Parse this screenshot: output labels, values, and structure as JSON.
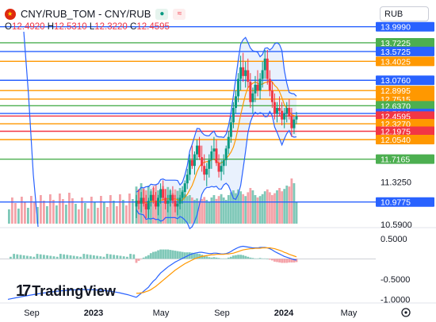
{
  "header": {
    "title": "CNY/RUB_TOM - CNY/RUB",
    "badge_a": "●",
    "badge_b": "≈",
    "o_label": "O",
    "o_value": "12.4920",
    "h_label": "H",
    "h_value": "12.5310",
    "l_label": "L",
    "l_value": "12.3220",
    "c_label": "C",
    "c_value": "12.4595"
  },
  "currency_select": "RUB",
  "brand": "TradingView",
  "colors": {
    "up": "#089981",
    "down": "#f23645",
    "bollinger": "#2962ff",
    "ma": "#ff9800",
    "volume_up": "#7fc8b8",
    "volume_down": "#f4a3a9",
    "bb_fill": "#e7effd",
    "macd": "#2962ff",
    "signal": "#ff9800"
  },
  "chart_data": {
    "type": "candlestick",
    "xticks": [
      "Sep",
      "2023",
      "May",
      "Sep",
      "2024",
      "May"
    ],
    "yticks_main": [
      "11.3250",
      "10.5900"
    ],
    "yticks_macd": [
      "0.5000",
      "-0.5000",
      "-1.0000"
    ],
    "ylim_main": [
      10.55,
      14.05
    ],
    "ylim_macd": [
      -1.05,
      0.75
    ],
    "price_lines": [
      {
        "value": 13.999,
        "label": "13.9990",
        "color": "#2962ff"
      },
      {
        "value": 13.7225,
        "label": "13.7225",
        "color": "#4caf50"
      },
      {
        "value": 13.5725,
        "label": "13.5725",
        "color": "#2962ff"
      },
      {
        "value": 13.4025,
        "label": "13.4025",
        "color": "#ff9800"
      },
      {
        "value": 13.076,
        "label": "13.0760",
        "color": "#2962ff"
      },
      {
        "value": 12.8995,
        "label": "12.8995",
        "color": "#ff9800"
      },
      {
        "value": 12.7515,
        "label": "12.7515",
        "color": "#ff9800"
      },
      {
        "value": 12.637,
        "label": "12.6370",
        "color": "#4caf50"
      },
      {
        "value": 12.504,
        "label": "12.5040",
        "color": "#2962ff"
      },
      {
        "value": 12.4595,
        "label": "12.4595",
        "color": "#f23645"
      },
      {
        "value": 12.327,
        "label": "12.3270",
        "color": "#ff9800"
      },
      {
        "value": 12.1975,
        "label": "12.1975",
        "color": "#f23645"
      },
      {
        "value": 12.054,
        "label": "12.0540",
        "color": "#ff9800"
      },
      {
        "value": 11.7165,
        "label": "11.7165",
        "color": "#4caf50"
      },
      {
        "value": 10.9775,
        "label": "10.9775",
        "color": "#2962ff"
      }
    ],
    "candles": [
      [
        10.9,
        11.1,
        10.7,
        11.0
      ],
      [
        11.0,
        11.2,
        10.85,
        10.95
      ],
      [
        10.95,
        11.15,
        10.8,
        11.05
      ],
      [
        11.05,
        11.2,
        10.9,
        10.95
      ],
      [
        10.95,
        11.1,
        10.7,
        10.85
      ],
      [
        10.85,
        11.05,
        10.7,
        11.0
      ],
      [
        11.0,
        11.2,
        10.9,
        11.1
      ],
      [
        11.1,
        11.25,
        10.95,
        11.0
      ],
      [
        11.0,
        11.15,
        10.85,
        10.9
      ],
      [
        10.9,
        11.1,
        10.75,
        11.05
      ],
      [
        11.05,
        11.3,
        10.95,
        11.2
      ],
      [
        11.2,
        11.35,
        11.0,
        11.05
      ],
      [
        11.05,
        11.2,
        10.85,
        10.95
      ],
      [
        10.95,
        11.1,
        10.8,
        11.0
      ],
      [
        11.0,
        11.2,
        10.9,
        11.1
      ],
      [
        11.1,
        11.25,
        10.95,
        11.0
      ],
      [
        11.0,
        11.1,
        10.8,
        10.9
      ],
      [
        10.9,
        11.05,
        10.75,
        10.95
      ],
      [
        10.95,
        11.1,
        10.85,
        11.05
      ],
      [
        11.05,
        11.25,
        10.95,
        11.15
      ],
      [
        11.15,
        11.35,
        11.05,
        11.3
      ],
      [
        11.3,
        11.55,
        11.2,
        11.45
      ],
      [
        11.45,
        11.8,
        11.35,
        11.7
      ],
      [
        11.7,
        11.95,
        11.55,
        11.6
      ],
      [
        11.6,
        11.85,
        11.45,
        11.8
      ],
      [
        11.8,
        12.05,
        11.7,
        11.95
      ],
      [
        11.95,
        12.1,
        11.7,
        11.75
      ],
      [
        11.75,
        11.95,
        11.5,
        11.6
      ],
      [
        11.6,
        11.8,
        11.35,
        11.45
      ],
      [
        11.45,
        11.65,
        11.25,
        11.55
      ],
      [
        11.55,
        11.8,
        11.4,
        11.7
      ],
      [
        11.7,
        11.95,
        11.55,
        11.85
      ],
      [
        11.85,
        12.1,
        11.7,
        11.9
      ],
      [
        11.9,
        12.05,
        11.6,
        11.65
      ],
      [
        11.65,
        11.8,
        11.4,
        11.5
      ],
      [
        11.5,
        11.7,
        11.35,
        11.6
      ],
      [
        11.6,
        11.8,
        11.45,
        11.7
      ],
      [
        11.7,
        11.95,
        11.6,
        11.9
      ],
      [
        11.9,
        12.2,
        11.8,
        12.1
      ],
      [
        12.1,
        12.45,
        12.0,
        12.35
      ],
      [
        12.35,
        12.7,
        12.25,
        12.6
      ],
      [
        12.6,
        12.9,
        12.5,
        12.8
      ],
      [
        12.8,
        13.2,
        12.7,
        13.1
      ],
      [
        13.1,
        13.5,
        12.9,
        13.3
      ],
      [
        13.3,
        13.55,
        13.05,
        13.15
      ],
      [
        13.15,
        13.4,
        12.95,
        13.25
      ],
      [
        13.25,
        13.45,
        12.95,
        13.05
      ],
      [
        13.05,
        13.2,
        12.6,
        12.7
      ],
      [
        12.7,
        12.95,
        12.5,
        12.85
      ],
      [
        12.85,
        13.15,
        12.7,
        13.0
      ],
      [
        13.0,
        13.25,
        12.8,
        12.9
      ],
      [
        12.9,
        13.2,
        12.75,
        13.1
      ],
      [
        13.1,
        13.4,
        12.95,
        13.25
      ],
      [
        13.25,
        13.6,
        13.1,
        13.45
      ],
      [
        13.45,
        13.6,
        13.0,
        13.1
      ],
      [
        13.1,
        13.25,
        12.8,
        12.9
      ],
      [
        12.9,
        13.05,
        12.6,
        12.7
      ],
      [
        12.7,
        12.85,
        12.4,
        12.5
      ],
      [
        12.5,
        12.7,
        12.35,
        12.6
      ],
      [
        12.6,
        12.8,
        12.45,
        12.55
      ],
      [
        12.55,
        12.7,
        12.3,
        12.4
      ],
      [
        12.4,
        12.6,
        12.25,
        12.5
      ],
      [
        12.5,
        12.7,
        12.35,
        12.6
      ],
      [
        12.6,
        12.75,
        12.4,
        12.45
      ],
      [
        12.45,
        12.6,
        12.1,
        12.25
      ],
      [
        12.25,
        12.45,
        12.15,
        12.4
      ],
      [
        12.4,
        12.53,
        12.32,
        12.46
      ]
    ],
    "volume_relative": [
      0.78,
      0.72,
      0.85,
      0.74,
      0.7,
      0.8,
      0.68,
      0.75,
      0.82,
      0.7,
      0.66,
      0.79,
      0.73,
      0.77,
      0.7,
      0.64,
      0.72,
      0.69,
      0.75,
      0.7,
      0.62,
      0.58,
      0.6,
      0.55,
      0.5,
      0.53,
      0.48,
      0.52,
      0.56,
      0.5,
      0.45,
      0.55,
      0.6,
      0.52,
      0.58,
      0.62,
      0.55,
      0.5,
      0.6,
      0.66,
      0.7,
      0.64,
      0.72,
      0.68,
      0.62,
      0.58,
      0.66,
      0.75,
      0.7,
      0.6,
      0.55,
      0.58,
      0.62,
      0.68,
      0.72,
      0.66,
      0.6,
      0.64,
      0.7,
      0.75,
      0.68,
      0.73,
      0.8,
      0.78,
      0.95,
      0.85,
      0.45
    ],
    "macd": [
      -0.95,
      -0.9,
      -0.85,
      -0.8,
      -0.75,
      -0.7,
      -0.62,
      -0.55,
      -0.5,
      -0.42,
      -0.35,
      -0.3,
      -0.25,
      -0.2,
      -0.16,
      -0.12,
      -0.08,
      -0.05,
      -0.02,
      0.01,
      0.04,
      0.07,
      0.1,
      0.12,
      0.14,
      0.15,
      0.16,
      0.16,
      0.15,
      0.14,
      0.13,
      0.13,
      0.14,
      0.14,
      0.13,
      0.12,
      0.12,
      0.13,
      0.15,
      0.18,
      0.22,
      0.25,
      0.28,
      0.3,
      0.31,
      0.3,
      0.29,
      0.28,
      0.27,
      0.27,
      0.27,
      0.28,
      0.28,
      0.28,
      0.27,
      0.25,
      0.22,
      0.18,
      0.15,
      0.12,
      0.09,
      0.06,
      0.04,
      0.02,
      0.0,
      -0.02,
      -0.03
    ],
    "signal": [
      -0.85,
      -0.85,
      -0.84,
      -0.83,
      -0.81,
      -0.79,
      -0.76,
      -0.72,
      -0.68,
      -0.63,
      -0.58,
      -0.53,
      -0.48,
      -0.43,
      -0.38,
      -0.33,
      -0.28,
      -0.24,
      -0.2,
      -0.16,
      -0.12,
      -0.09,
      -0.06,
      -0.03,
      0.0,
      0.02,
      0.04,
      0.06,
      0.07,
      0.08,
      0.09,
      0.1,
      0.1,
      0.11,
      0.11,
      0.11,
      0.11,
      0.12,
      0.12,
      0.13,
      0.14,
      0.16,
      0.18,
      0.2,
      0.22,
      0.23,
      0.24,
      0.25,
      0.25,
      0.26,
      0.26,
      0.26,
      0.27,
      0.27,
      0.27,
      0.27,
      0.26,
      0.25,
      0.23,
      0.21,
      0.19,
      0.16,
      0.14,
      0.11,
      0.09,
      0.07,
      0.05
    ]
  }
}
